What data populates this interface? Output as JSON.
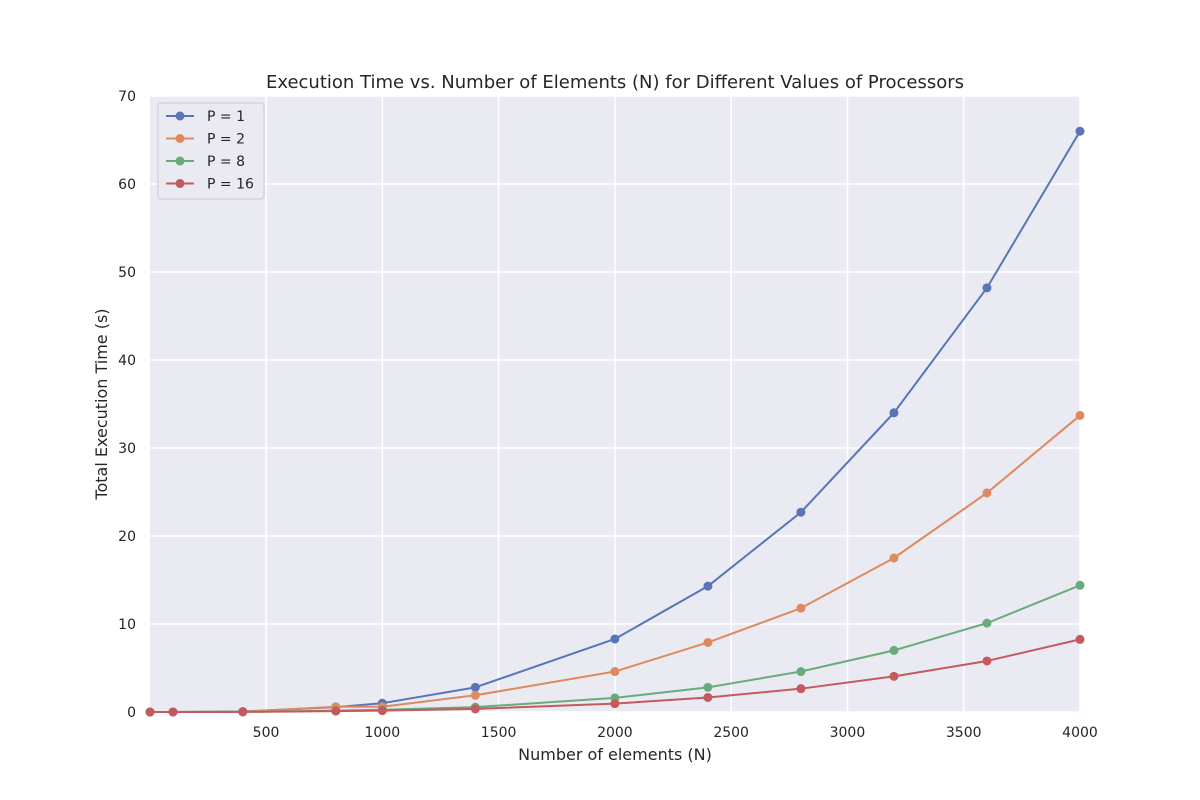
{
  "chart_data": {
    "type": "line",
    "title": "Execution Time vs. Number of Elements (N) for Different Values of Processors",
    "xlabel": "Number of elements (N)",
    "ylabel": "Total Execution Time (s)",
    "xlim": [
      1,
      4000
    ],
    "ylim": [
      0,
      70
    ],
    "xticks": [
      500,
      1000,
      1500,
      2000,
      2500,
      3000,
      3500,
      4000
    ],
    "yticks": [
      0,
      10,
      20,
      30,
      40,
      50,
      60,
      70
    ],
    "grid": true,
    "legend_position": "top-left",
    "x": [
      1,
      100,
      400,
      800,
      1000,
      1400,
      2000,
      2400,
      2800,
      3200,
      3600,
      4000
    ],
    "series": [
      {
        "name": "P = 1",
        "color": "#5975b6",
        "values": [
          0,
          0,
          0.05,
          0.55,
          1.0,
          2.8,
          8.3,
          14.3,
          22.7,
          34.0,
          48.2,
          66.0
        ]
      },
      {
        "name": "P = 2",
        "color": "#de8a5e",
        "values": [
          0,
          0,
          0.03,
          0.6,
          0.6,
          1.9,
          4.6,
          7.9,
          11.8,
          17.5,
          24.9,
          33.7
        ]
      },
      {
        "name": "P = 8",
        "color": "#6aac79",
        "values": [
          0,
          0,
          0.01,
          0.15,
          0.25,
          0.55,
          1.6,
          2.8,
          4.6,
          7.0,
          10.1,
          14.4
        ]
      },
      {
        "name": "P = 16",
        "color": "#c45a5d",
        "values": [
          0,
          0,
          0.01,
          0.1,
          0.15,
          0.35,
          0.95,
          1.65,
          2.65,
          4.05,
          5.8,
          8.25
        ]
      }
    ]
  }
}
